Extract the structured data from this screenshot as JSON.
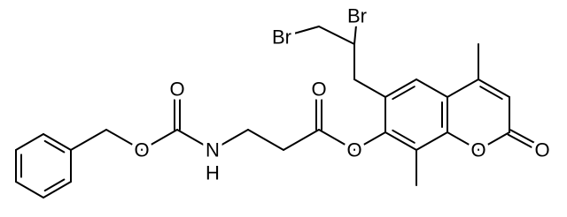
{
  "molecule": {
    "atoms": [
      "Br",
      "Br",
      "O",
      "O",
      "N",
      "H",
      "O",
      "O",
      "O",
      "O"
    ]
  }
}
